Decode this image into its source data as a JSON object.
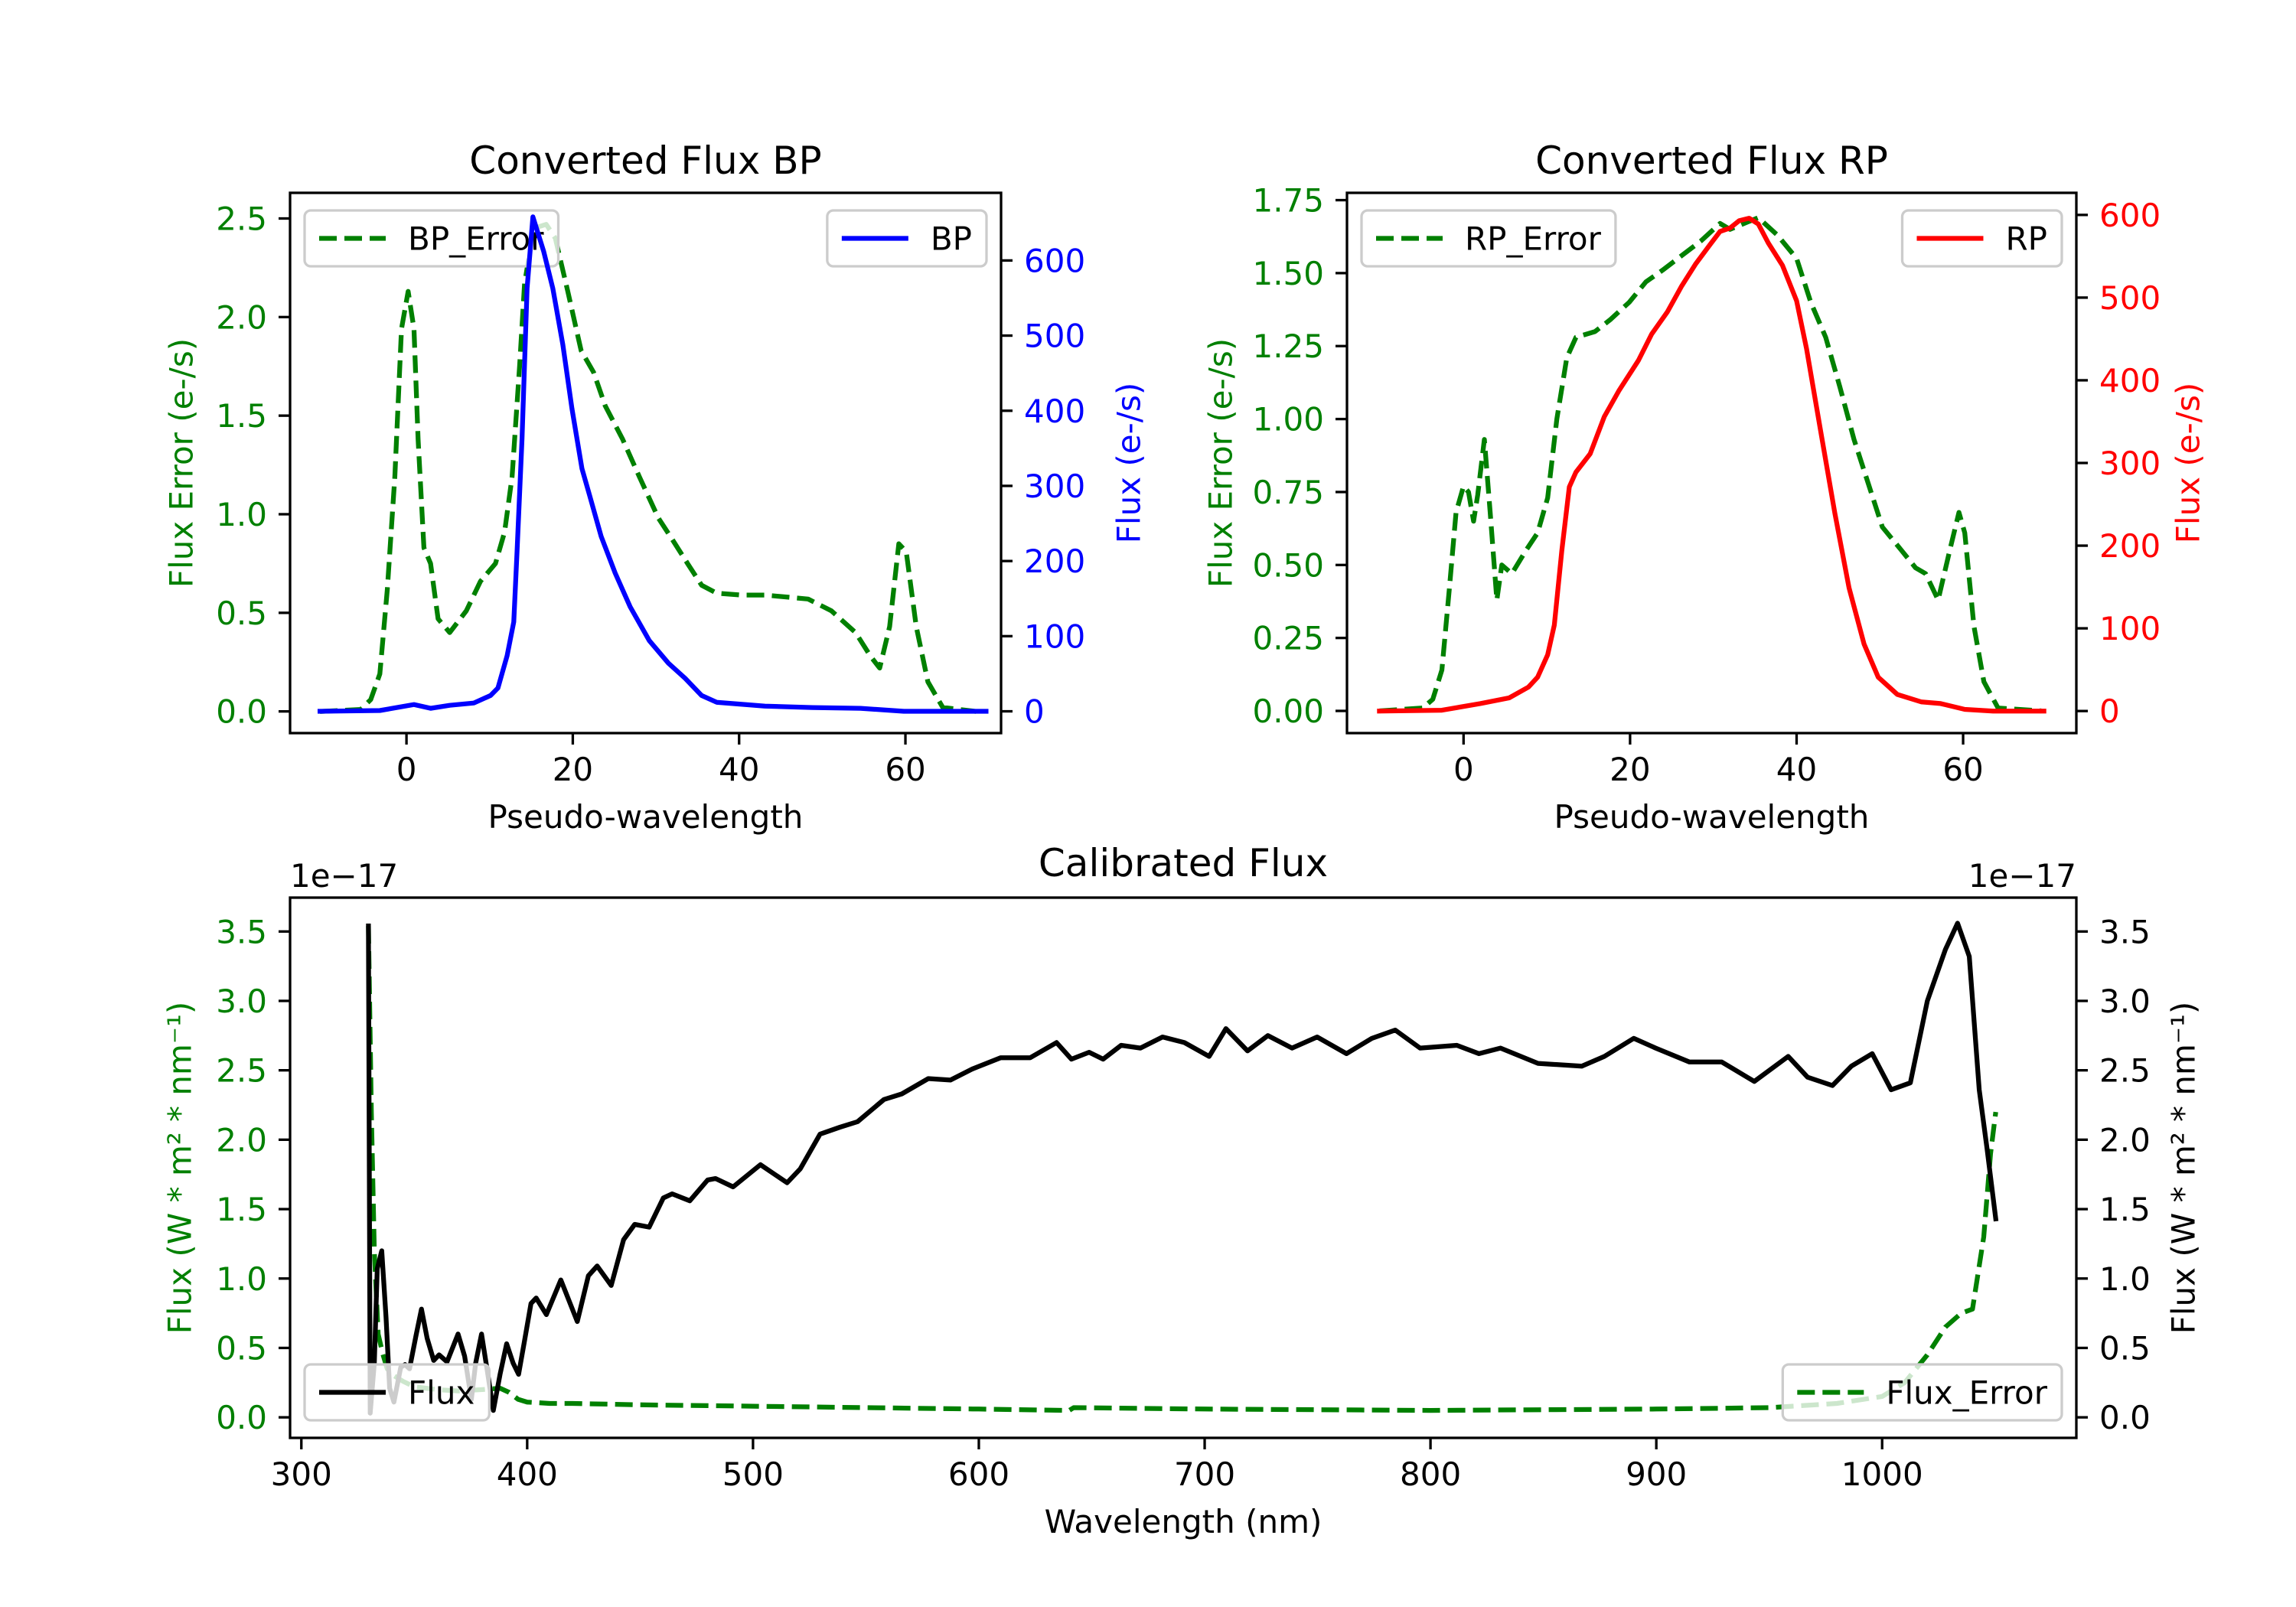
{
  "chart_data": [
    {
      "type": "line",
      "title": "Converted Flux BP",
      "xlabel": "Pseudo-wavelength",
      "xlim": [
        -14,
        71.5
      ],
      "x_ticks": {
        "values": [
          0,
          20,
          40,
          60
        ],
        "labels": [
          "0",
          "20",
          "40",
          "60"
        ]
      },
      "offset_text": null,
      "axes": {
        "left": {
          "label": "Flux Error (e-/s)",
          "color": "#008000",
          "ylim": [
            -0.11,
            2.63
          ],
          "ticks": {
            "values": [
              0,
              0.5,
              1.0,
              1.5,
              2.0,
              2.5
            ],
            "labels": [
              "0.0",
              "0.5",
              "1.0",
              "1.5",
              "2.0",
              "2.5"
            ]
          },
          "legend_loc": "upper left"
        },
        "right": {
          "label": "Flux (e-/s)",
          "color": "#0000ff",
          "ylim": [
            -29,
            690
          ],
          "ticks": {
            "values": [
              0,
              100,
              200,
              300,
              400,
              500,
              600
            ],
            "labels": [
              "0",
              "100",
              "200",
              "300",
              "400",
              "500",
              "600"
            ]
          },
          "legend_loc": "upper right"
        }
      },
      "series": [
        {
          "name": "BP_Error",
          "axis": "left",
          "color": "#008000",
          "style": "dashed",
          "x": [
            -10.4,
            -5.5,
            -4.3,
            -3.2,
            -2.3,
            -1.4,
            -0.6,
            0.2,
            0.9,
            1.4,
            2.1,
            2.9,
            3.8,
            5.2,
            7.2,
            8.9,
            10.7,
            11.8,
            12.7,
            13.6,
            14.2,
            15.3,
            16.8,
            17.9,
            19.4,
            21,
            22.5,
            23.9,
            26,
            28,
            30.3,
            32,
            33.8,
            35.5,
            37.3,
            40.2,
            43.1,
            48.3,
            51.1,
            54,
            55.8,
            56.9,
            58.1,
            59.2,
            60.1,
            61.3,
            62.7,
            64.5,
            68.5
          ],
          "y": [
            0,
            0.01,
            0.06,
            0.19,
            0.62,
            1.19,
            1.94,
            2.13,
            1.94,
            1.38,
            0.83,
            0.75,
            0.47,
            0.4,
            0.51,
            0.66,
            0.75,
            0.91,
            1.19,
            1.75,
            2.17,
            2.45,
            2.47,
            2.4,
            2.13,
            1.83,
            1.72,
            1.55,
            1.38,
            1.19,
            0.98,
            0.87,
            0.75,
            0.64,
            0.6,
            0.59,
            0.59,
            0.57,
            0.51,
            0.4,
            0.28,
            0.22,
            0.43,
            0.85,
            0.81,
            0.43,
            0.15,
            0.02,
            0
          ]
        },
        {
          "name": "BP",
          "axis": "right",
          "color": "#0000ff",
          "style": "solid",
          "x": [
            -10.4,
            -3.2,
            0.9,
            2.9,
            5.2,
            8.1,
            10.1,
            11,
            12.1,
            12.9,
            13.3,
            13.9,
            14.5,
            15.2,
            16.5,
            17.6,
            18.8,
            19.9,
            21.1,
            22,
            23.4,
            25.1,
            26.9,
            29.2,
            31.5,
            33.5,
            35.5,
            37.3,
            40.8,
            43.1,
            48.8,
            54.6,
            59.8,
            69.7
          ],
          "y": [
            0,
            1,
            9,
            4,
            8,
            11,
            21,
            31,
            74,
            119,
            213,
            363,
            563,
            658,
            612,
            563,
            488,
            403,
            323,
            288,
            233,
            184,
            139,
            94,
            64,
            44,
            21,
            12,
            9,
            7,
            5,
            4,
            0,
            0
          ]
        }
      ]
    },
    {
      "type": "line",
      "title": "Converted Flux RP",
      "xlabel": "Pseudo-wavelength",
      "xlim": [
        -14,
        73.6
      ],
      "x_ticks": {
        "values": [
          0,
          20,
          40,
          60
        ],
        "labels": [
          "0",
          "20",
          "40",
          "60"
        ]
      },
      "offset_text": null,
      "axes": {
        "left": {
          "label": "Flux Error (e-/s)",
          "color": "#008000",
          "ylim": [
            -0.076,
            1.775
          ],
          "ticks": {
            "values": [
              0,
              0.25,
              0.5,
              0.75,
              1.0,
              1.25,
              1.5,
              1.75
            ],
            "labels": [
              "0.00",
              "0.25",
              "0.50",
              "0.75",
              "1.00",
              "1.25",
              "1.50",
              "1.75"
            ]
          },
          "legend_loc": "upper left"
        },
        "right": {
          "label": "Flux (e-/s)",
          "color": "#ff0000",
          "ylim": [
            -26.7,
            626.7
          ],
          "ticks": {
            "values": [
              0,
              100,
              200,
              300,
              400,
              500,
              600
            ],
            "labels": [
              "0",
              "100",
              "200",
              "300",
              "400",
              "500",
              "600"
            ]
          },
          "legend_loc": "upper right"
        }
      },
      "series": [
        {
          "name": "RP_Error",
          "axis": "left",
          "color": "#008000",
          "style": "dashed",
          "x": [
            -10.1,
            -4.9,
            -3.7,
            -2.6,
            -1.7,
            -0.9,
            0,
            0.6,
            1.2,
            1.7,
            2.5,
            3.2,
            4,
            4.6,
            5.8,
            7.5,
            8.9,
            10.1,
            11.2,
            12.4,
            13.5,
            15.8,
            17.6,
            19.9,
            21.9,
            23.9,
            26.2,
            28.5,
            30.8,
            32,
            33.7,
            35.4,
            37.7,
            40,
            41.7,
            43.5,
            45.2,
            46.9,
            48.6,
            50.3,
            52.6,
            54.3,
            55.5,
            57,
            58.4,
            59.5,
            60.2,
            61.3,
            62.5,
            64.2,
            69.4
          ],
          "y": [
            0,
            0.01,
            0.04,
            0.14,
            0.42,
            0.68,
            0.77,
            0.75,
            0.65,
            0.74,
            0.93,
            0.68,
            0.38,
            0.5,
            0.47,
            0.55,
            0.61,
            0.73,
            1.0,
            1.21,
            1.28,
            1.3,
            1.34,
            1.4,
            1.47,
            1.51,
            1.56,
            1.61,
            1.67,
            1.65,
            1.67,
            1.69,
            1.63,
            1.55,
            1.4,
            1.28,
            1.11,
            0.93,
            0.78,
            0.63,
            0.55,
            0.49,
            0.47,
            0.38,
            0.55,
            0.68,
            0.61,
            0.29,
            0.1,
            0.01,
            0
          ]
        },
        {
          "name": "RP",
          "axis": "right",
          "color": "#ff0000",
          "style": "solid",
          "x": [
            -10.1,
            -2.6,
            2,
            5.5,
            7.8,
            8.9,
            10.1,
            10.9,
            11.8,
            12.7,
            13.5,
            15.2,
            16.9,
            18.7,
            21,
            22.6,
            24.5,
            26.2,
            27.9,
            29.6,
            30.8,
            32,
            33.1,
            34.3,
            35.4,
            36.6,
            38.3,
            40,
            41.2,
            42.9,
            44.6,
            46.3,
            48.1,
            49.8,
            52.1,
            55,
            57.3,
            60.2,
            63.6,
            69.7
          ],
          "y": [
            0,
            1,
            9,
            16,
            29,
            41,
            68,
            104,
            194,
            271,
            289,
            311,
            356,
            388,
            424,
            456,
            483,
            514,
            541,
            564,
            580,
            584,
            593,
            596,
            589,
            566,
            539,
            496,
            438,
            338,
            239,
            149,
            81,
            41,
            20,
            11,
            9,
            2,
            0,
            0
          ]
        }
      ]
    },
    {
      "type": "line",
      "title": "Calibrated Flux",
      "xlabel": "Wavelength (nm)",
      "xlim": [
        295,
        1086
      ],
      "x_ticks": {
        "values": [
          300,
          400,
          500,
          600,
          700,
          800,
          900,
          1000
        ],
        "labels": [
          "300",
          "400",
          "500",
          "600",
          "700",
          "800",
          "900",
          "1000"
        ]
      },
      "offset_text": "1e−17",
      "axes": {
        "left": {
          "label": "Flux (W * m² * nm⁻¹)",
          "color": "#008000",
          "ylim": [
            -0.148,
            3.744
          ],
          "ticks": {
            "values": [
              0,
              0.5,
              1.0,
              1.5,
              2.0,
              2.5,
              3.0,
              3.5
            ],
            "labels": [
              "0.0",
              "0.5",
              "1.0",
              "1.5",
              "2.0",
              "2.5",
              "3.0",
              "3.5"
            ]
          },
          "legend_loc": "lower right"
        },
        "right": {
          "label": "Flux (W * m² * nm⁻¹)",
          "color": "#000000",
          "ylim": [
            -0.148,
            3.744
          ],
          "ticks": {
            "values": [
              0,
              0.5,
              1.0,
              1.5,
              2.0,
              2.5,
              3.0,
              3.5
            ],
            "labels": [
              "0.0",
              "0.5",
              "1.0",
              "1.5",
              "2.0",
              "2.5",
              "3.0",
              "3.5"
            ]
          },
          "legend_loc": "lower left"
        }
      },
      "series": [
        {
          "name": "Flux_Error",
          "axis": "left",
          "color": "#008000",
          "style": "dashed",
          "x": [
            329.7,
            331,
            332.3,
            334,
            336,
            338,
            341,
            345,
            350,
            360,
            370,
            380,
            388,
            392,
            396,
            400,
            410,
            420,
            450,
            500,
            550,
            600,
            640,
            642,
            700,
            800,
            900,
            950,
            980,
            1000,
            1010,
            1020,
            1028,
            1035,
            1040,
            1045,
            1048,
            1050.3
          ],
          "y": [
            3.54,
            2.2,
            1.2,
            0.6,
            0.46,
            0.35,
            0.3,
            0.26,
            0.22,
            0.2,
            0.19,
            0.2,
            0.21,
            0.18,
            0.13,
            0.11,
            0.1,
            0.1,
            0.09,
            0.08,
            0.07,
            0.06,
            0.05,
            0.07,
            0.06,
            0.05,
            0.06,
            0.07,
            0.1,
            0.15,
            0.25,
            0.45,
            0.65,
            0.75,
            0.78,
            1.3,
            1.9,
            2.2
          ]
        },
        {
          "name": "Flux",
          "axis": "right",
          "color": "#000000",
          "style": "solid",
          "x": [
            329.7,
            330.5,
            332.3,
            333.6,
            335.6,
            337.5,
            339.1,
            341,
            344,
            345.9,
            347.9,
            350.8,
            353.2,
            355.7,
            358.6,
            361,
            364.5,
            369.4,
            372.3,
            375.3,
            377.2,
            379.8,
            382.1,
            385,
            388,
            390.9,
            393.8,
            396.2,
            398.7,
            401.7,
            404,
            408.5,
            414.9,
            422.2,
            427.1,
            431,
            437.2,
            442.7,
            447.6,
            454,
            460.3,
            464.2,
            472,
            479.9,
            483.4,
            491.2,
            503.3,
            515.1,
            520.9,
            529.7,
            538.5,
            546.3,
            558,
            565.9,
            577.6,
            587.4,
            597.2,
            609.6,
            622.7,
            634.4,
            641,
            648.8,
            655,
            663,
            671.6,
            681.4,
            691,
            702,
            709.4,
            719,
            728,
            738.7,
            749.8,
            762.8,
            774,
            784.4,
            795.4,
            811.7,
            821.5,
            831,
            847.6,
            867,
            877,
            890,
            899.7,
            914.7,
            929,
            943.4,
            958.4,
            967,
            978,
            986.4,
            995.6,
            1004,
            1012.5,
            1020,
            1028,
            1033.4,
            1038.6,
            1043,
            1046.4,
            1050.3
          ],
          "y": [
            3.54,
            0.03,
            0.39,
            1.07,
            1.2,
            0.72,
            0.21,
            0.11,
            0.36,
            0.38,
            0.35,
            0.59,
            0.78,
            0.57,
            0.41,
            0.45,
            0.4,
            0.6,
            0.44,
            0.13,
            0.39,
            0.6,
            0.36,
            0.05,
            0.31,
            0.53,
            0.39,
            0.31,
            0.54,
            0.82,
            0.86,
            0.74,
            0.99,
            0.69,
            1.02,
            1.09,
            0.95,
            1.28,
            1.39,
            1.37,
            1.58,
            1.61,
            1.56,
            1.71,
            1.72,
            1.66,
            1.82,
            1.69,
            1.79,
            2.04,
            2.09,
            2.13,
            2.29,
            2.33,
            2.44,
            2.43,
            2.51,
            2.59,
            2.59,
            2.7,
            2.58,
            2.63,
            2.58,
            2.68,
            2.66,
            2.74,
            2.7,
            2.6,
            2.8,
            2.64,
            2.75,
            2.66,
            2.74,
            2.62,
            2.73,
            2.79,
            2.66,
            2.68,
            2.62,
            2.66,
            2.55,
            2.53,
            2.6,
            2.73,
            2.66,
            2.56,
            2.56,
            2.42,
            2.6,
            2.45,
            2.39,
            2.53,
            2.62,
            2.36,
            2.41,
            3.0,
            3.37,
            3.56,
            3.32,
            2.36,
            1.94,
            1.43
          ]
        }
      ]
    }
  ]
}
